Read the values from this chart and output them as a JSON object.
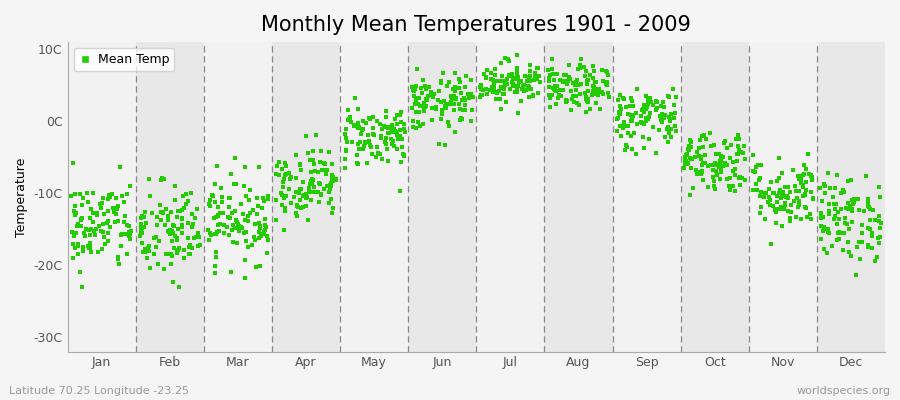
{
  "title": "Monthly Mean Temperatures 1901 - 2009",
  "ylabel": "Temperature",
  "xlabel_bottom_left": "Latitude 70.25 Longitude -23.25",
  "xlabel_bottom_right": "worldspecies.org",
  "ytick_labels": [
    "-30C",
    "-20C",
    "-10C",
    "0C",
    "10C"
  ],
  "ytick_values": [
    -30,
    -20,
    -10,
    0,
    10
  ],
  "ylim": [
    -32,
    11
  ],
  "months": [
    "Jan",
    "Feb",
    "Mar",
    "Apr",
    "May",
    "Jun",
    "Jul",
    "Aug",
    "Sep",
    "Oct",
    "Nov",
    "Dec"
  ],
  "marker_color": "#22cc00",
  "plot_bg_color": "#f2f2f2",
  "fig_bg_color": "#f5f5f5",
  "alt_band_color": "#e8e8e8",
  "n_years": 109,
  "mean_temps": [
    -14.5,
    -15.5,
    -13.5,
    -8.5,
    -2.0,
    2.5,
    5.5,
    4.5,
    0.5,
    -5.5,
    -10.0,
    -13.5
  ],
  "std_temps": [
    3.2,
    3.5,
    3.0,
    2.5,
    2.2,
    2.0,
    1.5,
    1.6,
    2.2,
    2.2,
    2.5,
    3.0
  ],
  "title_fontsize": 15,
  "axis_fontsize": 9,
  "legend_fontsize": 9
}
